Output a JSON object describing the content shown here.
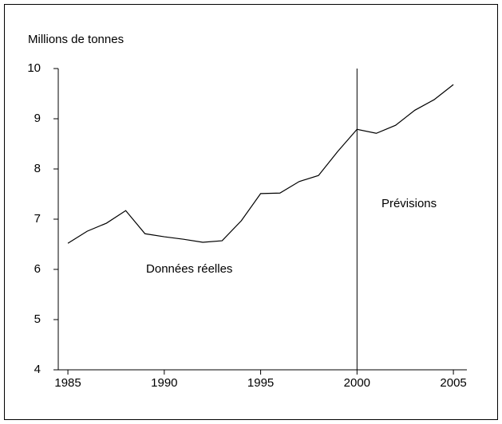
{
  "chart_data": {
    "type": "line",
    "y_axis_label": "Millions de tonnes",
    "x": [
      1985,
      1986,
      1987,
      1988,
      1989,
      1990,
      1991,
      1992,
      1993,
      1994,
      1995,
      1996,
      1997,
      1998,
      1999,
      2000,
      2001,
      2002,
      2003,
      2004,
      2005
    ],
    "series": [
      {
        "color": "#000000",
        "values": [
          6.52,
          6.76,
          6.92,
          7.17,
          6.71,
          6.65,
          6.6,
          6.54,
          6.57,
          6.97,
          7.51,
          7.52,
          7.75,
          7.87,
          8.35,
          8.79,
          8.71,
          8.87,
          9.17,
          9.38,
          9.68
        ]
      }
    ],
    "xlim": [
      1984.5,
      2005.7
    ],
    "xticks": [
      1985,
      1990,
      1995,
      2000,
      2005
    ],
    "ylim": [
      4,
      10
    ],
    "yticks": [
      4,
      5,
      6,
      7,
      8,
      9,
      10
    ],
    "divider_x": 2000,
    "annotations": [
      {
        "text": "Données réelles",
        "x": 1991.3,
        "y": 6
      },
      {
        "text": "Prévisions",
        "x": 2002.7,
        "y": 7.3
      }
    ]
  }
}
